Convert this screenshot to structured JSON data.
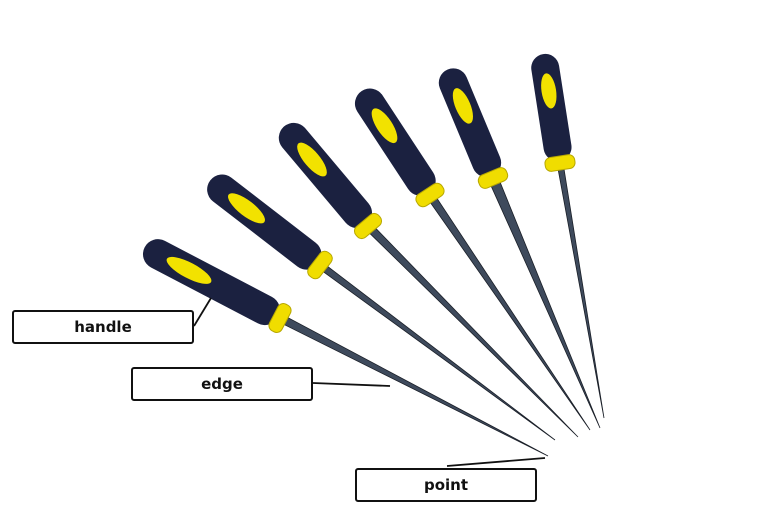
{
  "labels": {
    "handle": "handle",
    "edge": "edge",
    "point": "point"
  },
  "colors": {
    "handle_body": "#1b2140",
    "handle_grip": "#f2e200",
    "ferrule": "#f0dd00",
    "blade": "#3e4a5c",
    "label_border": "#111111",
    "leader_line": "#111111"
  },
  "tools": {
    "count": 6
  }
}
